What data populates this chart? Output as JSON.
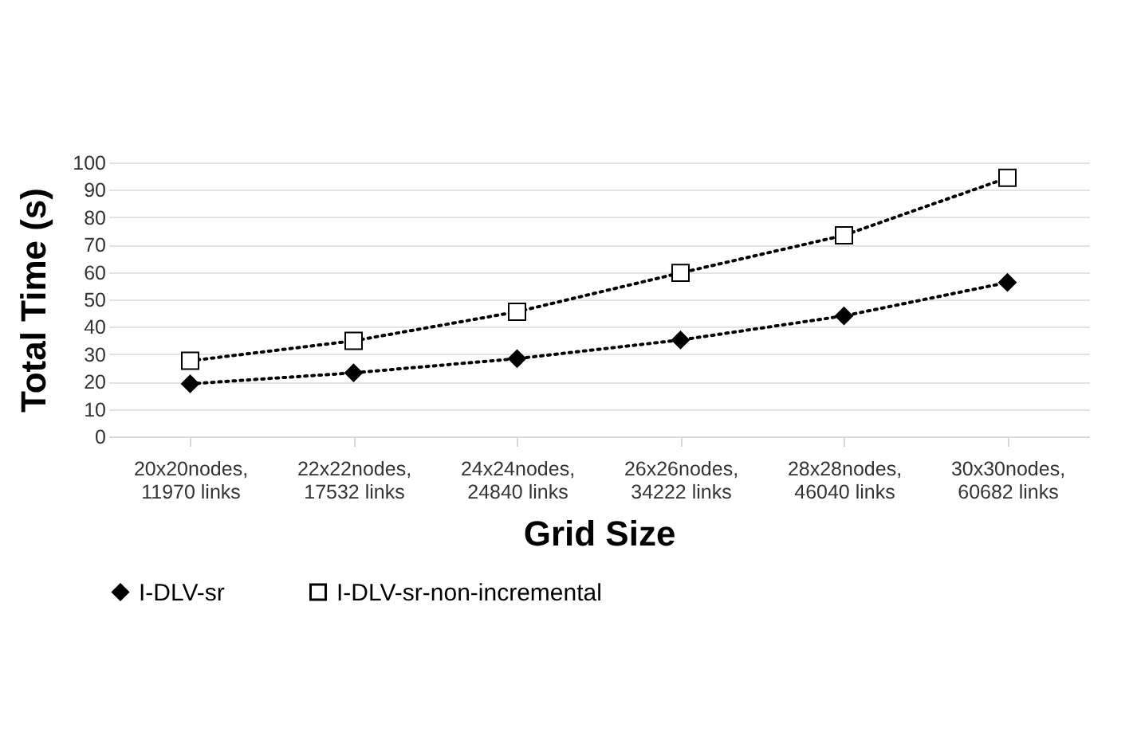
{
  "chart_data": {
    "type": "line",
    "xlabel": "Grid Size",
    "ylabel": "Total Time (s)",
    "categories": [
      "20x20nodes, 11970 links",
      "22x22nodes, 17532 links",
      "24x24nodes, 24840 links",
      "26x26nodes, 34222 links",
      "28x28nodes, 46040 links",
      "30x30nodes, 60682 links"
    ],
    "series": [
      {
        "name": "I-DLV-sr",
        "color": "#000000",
        "marker": "diamond",
        "values": [
          19.2,
          23.2,
          28.4,
          35.2,
          44,
          56.2
        ]
      },
      {
        "name": "I-DLV-sr-non-incremental",
        "color": "#000000",
        "marker": "square",
        "values": [
          27.6,
          34.9,
          45.5,
          59.7,
          73.4,
          94.4
        ]
      }
    ],
    "ylim": [
      0,
      100
    ],
    "yticks": [
      0,
      10,
      20,
      30,
      40,
      50,
      60,
      70,
      80,
      90,
      100
    ],
    "grid": "y",
    "legend": "bottom",
    "line_style": "dotted"
  }
}
